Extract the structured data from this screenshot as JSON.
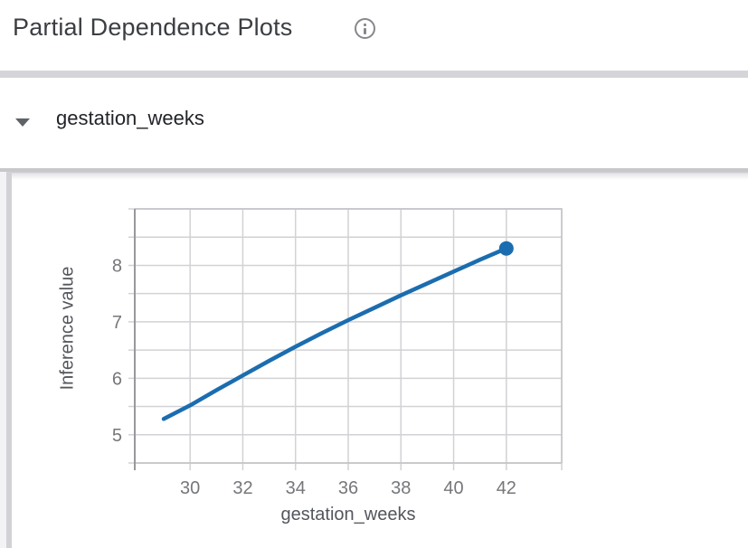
{
  "header": {
    "title": "Partial Dependence Plots",
    "info_icon": "info-icon"
  },
  "feature_section": {
    "label": "gestation_weeks",
    "expanded": true,
    "expander_icon": "caret-down-icon"
  },
  "chart_data": {
    "type": "line",
    "title": "",
    "xlabel": "gestation_weeks",
    "ylabel": "Inference value",
    "x": [
      29,
      30,
      31,
      32,
      33,
      34,
      35,
      36,
      37,
      38,
      39,
      40,
      41,
      42
    ],
    "y": [
      5.28,
      5.52,
      5.79,
      6.05,
      6.31,
      6.56,
      6.8,
      7.03,
      7.25,
      7.47,
      7.68,
      7.89,
      8.1,
      8.3
    ],
    "xlim": [
      27.9,
      44.1
    ],
    "ylim": [
      4.5,
      9.0
    ],
    "x_ticks": [
      30,
      32,
      34,
      36,
      38,
      40,
      42
    ],
    "y_ticks": [
      5,
      6,
      7,
      8
    ],
    "y_grid_step": 0.5,
    "grid": true,
    "legend": "none",
    "marker": "last-point-only",
    "line_color": "#1b6daf",
    "grid_color": "#d2d2d6",
    "border_color": "#c6c6ca",
    "axis_line_color": "#98989d",
    "tick_label_color": "#75777b",
    "axis_title_color": "#53565b"
  },
  "colors": {
    "title_text": "#3b3e42",
    "section_text": "#212428",
    "icon_gray": "#87888c",
    "title_divider": "#d5d5d9",
    "section_divider": "#c7c7cc",
    "left_rail": "#f3f3f5",
    "left_rail_strip": "#d2d2d6"
  }
}
